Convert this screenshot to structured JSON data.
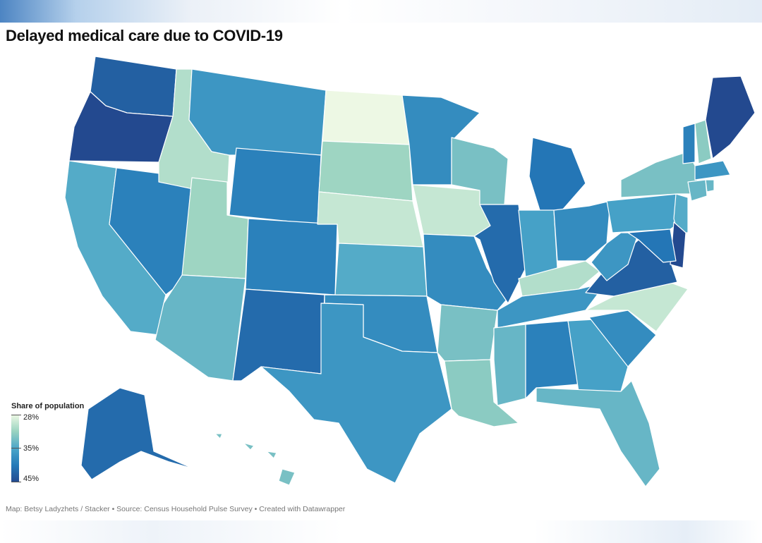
{
  "title": "Delayed medical care due to COVID-19",
  "legend": {
    "title": "Share of population",
    "min_label": "28%",
    "mid_label": "35%",
    "max_label": "45%",
    "colors": [
      "#edf8e4",
      "#99d3c0",
      "#4ba6c9",
      "#2479b8",
      "#23498f"
    ]
  },
  "footer": "Map: Betsy Ladyzhets / Stacker • Source: Census Household Pulse Survey • Created with Datawrapper",
  "chart_data": {
    "type": "choropleth",
    "title": "Delayed medical care due to COVID-19",
    "legend_title": "Share of population",
    "scale": {
      "min": 28,
      "mid": 35,
      "max": 45,
      "unit": "%"
    },
    "states": [
      {
        "name": "Washington",
        "value": 43
      },
      {
        "name": "Oregon",
        "value": 45
      },
      {
        "name": "California",
        "value": 36
      },
      {
        "name": "Nevada",
        "value": 40
      },
      {
        "name": "Idaho",
        "value": 31
      },
      {
        "name": "Montana",
        "value": 38
      },
      {
        "name": "Wyoming",
        "value": 40
      },
      {
        "name": "Utah",
        "value": 32
      },
      {
        "name": "Arizona",
        "value": 35
      },
      {
        "name": "Colorado",
        "value": 40
      },
      {
        "name": "New Mexico",
        "value": 42
      },
      {
        "name": "North Dakota",
        "value": 28
      },
      {
        "name": "South Dakota",
        "value": 32
      },
      {
        "name": "Nebraska",
        "value": 30
      },
      {
        "name": "Kansas",
        "value": 36
      },
      {
        "name": "Oklahoma",
        "value": 39
      },
      {
        "name": "Texas",
        "value": 38
      },
      {
        "name": "Minnesota",
        "value": 39
      },
      {
        "name": "Iowa",
        "value": 30
      },
      {
        "name": "Missouri",
        "value": 39
      },
      {
        "name": "Arkansas",
        "value": 34
      },
      {
        "name": "Louisiana",
        "value": 33
      },
      {
        "name": "Wisconsin",
        "value": 34
      },
      {
        "name": "Illinois",
        "value": 42
      },
      {
        "name": "Michigan",
        "value": 41
      },
      {
        "name": "Indiana",
        "value": 37
      },
      {
        "name": "Ohio",
        "value": 39
      },
      {
        "name": "Kentucky",
        "value": 31
      },
      {
        "name": "Tennessee",
        "value": 38
      },
      {
        "name": "Mississippi",
        "value": 35
      },
      {
        "name": "Alabama",
        "value": 40
      },
      {
        "name": "Georgia",
        "value": 37
      },
      {
        "name": "Florida",
        "value": 35
      },
      {
        "name": "South Carolina",
        "value": 39
      },
      {
        "name": "North Carolina",
        "value": 30
      },
      {
        "name": "Virginia",
        "value": 43
      },
      {
        "name": "West Virginia",
        "value": 38
      },
      {
        "name": "Pennsylvania",
        "value": 37
      },
      {
        "name": "New York",
        "value": 34
      },
      {
        "name": "New Jersey",
        "value": 36
      },
      {
        "name": "Delaware",
        "value": 45
      },
      {
        "name": "Maryland",
        "value": 41
      },
      {
        "name": "Vermont",
        "value": 40
      },
      {
        "name": "New Hampshire",
        "value": 33
      },
      {
        "name": "Massachusetts",
        "value": 38
      },
      {
        "name": "Connecticut",
        "value": 35
      },
      {
        "name": "Rhode Island",
        "value": 35
      },
      {
        "name": "Maine",
        "value": 45
      },
      {
        "name": "Alaska",
        "value": 42
      },
      {
        "name": "Hawaii",
        "value": 34
      }
    ]
  }
}
